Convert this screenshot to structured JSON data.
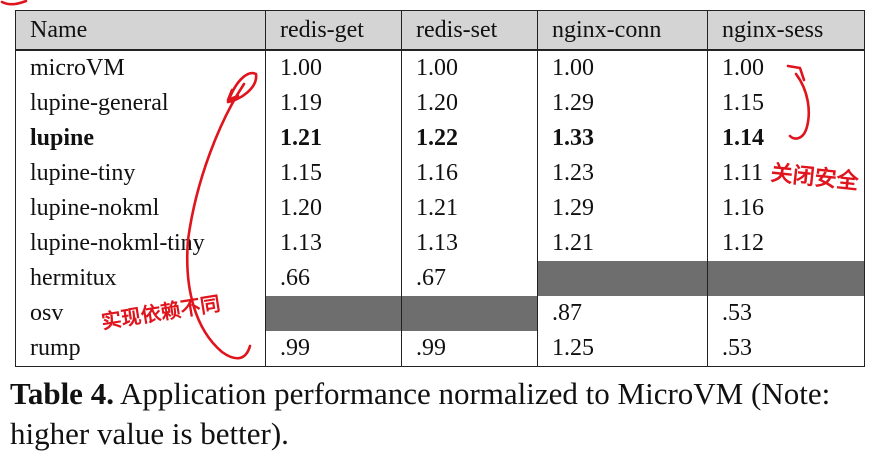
{
  "table": {
    "headers": [
      "Name",
      "redis-get",
      "redis-set",
      "nginx-conn",
      "nginx-sess"
    ],
    "rows": [
      {
        "name": "microVM",
        "values": [
          "1.00",
          "1.00",
          "1.00",
          "1.00"
        ],
        "bold": false
      },
      {
        "name": "lupine-general",
        "values": [
          "1.19",
          "1.20",
          "1.29",
          "1.15"
        ],
        "bold": false
      },
      {
        "name": "lupine",
        "values": [
          "1.21",
          "1.22",
          "1.33",
          "1.14"
        ],
        "bold": true
      },
      {
        "name": "lupine-tiny",
        "values": [
          "1.15",
          "1.16",
          "1.23",
          "1.11"
        ],
        "bold": false
      },
      {
        "name": "lupine-nokml",
        "values": [
          "1.20",
          "1.21",
          "1.29",
          "1.16"
        ],
        "bold": false
      },
      {
        "name": "lupine-nokml-tiny",
        "values": [
          "1.13",
          "1.13",
          "1.21",
          "1.12"
        ],
        "bold": false
      },
      {
        "name": "hermitux",
        "values": [
          ".66",
          ".67",
          null,
          null
        ],
        "bold": false
      },
      {
        "name": "osv",
        "values": [
          null,
          null,
          ".87",
          ".53"
        ],
        "bold": false
      },
      {
        "name": "rump",
        "values": [
          ".99",
          ".99",
          "1.25",
          ".53"
        ],
        "bold": false
      }
    ],
    "empty_cell_color": "#6e6e6e",
    "header_bg": "#d4d4d4"
  },
  "caption": {
    "label": "Table 4.",
    "text": "Application performance normalized to MicroVM (Note: higher value is better)."
  },
  "annotations": {
    "color": "#e0141c",
    "left_note": "实现依赖不同",
    "right_note": "关闭安全"
  }
}
